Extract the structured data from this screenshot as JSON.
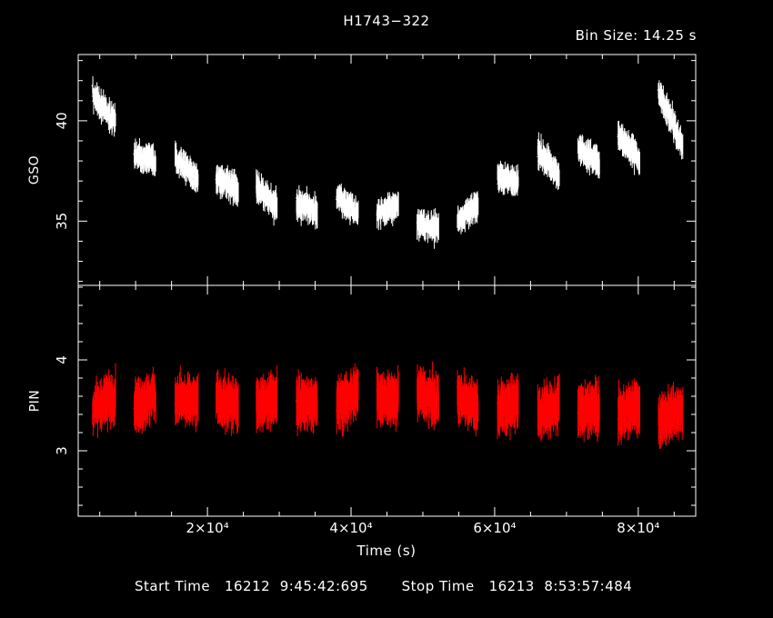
{
  "title": "H1743−322",
  "bin_size": "Bin Size: 14.25 s",
  "xlabel": "Time (s)",
  "footer": {
    "start_label": "Start Time",
    "start_value": "16212  9:45:42:695",
    "stop_label": "Stop Time",
    "stop_value": "16213  8:53:57:484"
  },
  "colors": {
    "gso": "#ffffff",
    "pin": "#ff0000",
    "background": "#000000",
    "axes": "#ffffff"
  },
  "chart_data": [
    {
      "type": "line",
      "panel": "top",
      "ylabel": "GSO",
      "xlim": [
        2000,
        88000
      ],
      "ylim": [
        31.8,
        43.3
      ],
      "xticks_major": [
        20000,
        40000,
        60000,
        80000
      ],
      "yticks_major": [
        35,
        40
      ],
      "yticklabels": [
        "35",
        "40"
      ],
      "series": [
        {
          "color": "#ffffff",
          "segments": [
            {
              "x0": 4000,
              "x1": 7200,
              "y0": 41.3,
              "y1": 39.9
            },
            {
              "x0": 9800,
              "x1": 12800,
              "y0": 38.3,
              "y1": 38.0
            },
            {
              "x0": 15500,
              "x1": 18700,
              "y0": 38.2,
              "y1": 37.0
            },
            {
              "x0": 21200,
              "x1": 24300,
              "y0": 37.2,
              "y1": 36.5
            },
            {
              "x0": 26800,
              "x1": 29700,
              "y0": 36.7,
              "y1": 35.7
            },
            {
              "x0": 32400,
              "x1": 35300,
              "y0": 35.9,
              "y1": 35.5
            },
            {
              "x0": 38000,
              "x1": 41000,
              "y0": 36.2,
              "y1": 35.4
            },
            {
              "x0": 43600,
              "x1": 46600,
              "y0": 35.4,
              "y1": 35.8
            },
            {
              "x0": 49200,
              "x1": 52200,
              "y0": 34.8,
              "y1": 34.7
            },
            {
              "x0": 54800,
              "x1": 57700,
              "y0": 35.0,
              "y1": 35.8
            },
            {
              "x0": 60400,
              "x1": 63300,
              "y0": 37.2,
              "y1": 37.0
            },
            {
              "x0": 66000,
              "x1": 69000,
              "y0": 38.5,
              "y1": 37.3
            },
            {
              "x0": 71600,
              "x1": 74600,
              "y0": 38.6,
              "y1": 37.9
            },
            {
              "x0": 77200,
              "x1": 80200,
              "y0": 39.3,
              "y1": 38.1
            },
            {
              "x0": 82800,
              "x1": 86200,
              "y0": 41.5,
              "y1": 38.7
            }
          ]
        }
      ]
    },
    {
      "type": "line",
      "panel": "bottom",
      "ylabel": "PIN",
      "xlabel": "Time (s)",
      "xlim": [
        2000,
        88000
      ],
      "ylim": [
        2.28,
        4.82
      ],
      "xticks_major": [
        20000,
        40000,
        60000,
        80000
      ],
      "xticklabels": [
        "2×10⁴",
        "4×10⁴",
        "6×10⁴",
        "8×10⁴"
      ],
      "yticks_major": [
        3,
        4
      ],
      "yticklabels": [
        "3",
        "4"
      ],
      "series": [
        {
          "color": "#ff0000",
          "segments": [
            {
              "x0": 4000,
              "x1": 7200,
              "y0": 3.45,
              "y1": 3.6
            },
            {
              "x0": 9800,
              "x1": 12800,
              "y0": 3.5,
              "y1": 3.6
            },
            {
              "x0": 15500,
              "x1": 18700,
              "y0": 3.55,
              "y1": 3.55
            },
            {
              "x0": 21200,
              "x1": 24300,
              "y0": 3.55,
              "y1": 3.5
            },
            {
              "x0": 26800,
              "x1": 29700,
              "y0": 3.5,
              "y1": 3.6
            },
            {
              "x0": 32400,
              "x1": 35300,
              "y0": 3.55,
              "y1": 3.5
            },
            {
              "x0": 38000,
              "x1": 41000,
              "y0": 3.5,
              "y1": 3.65
            },
            {
              "x0": 43600,
              "x1": 46600,
              "y0": 3.6,
              "y1": 3.55
            },
            {
              "x0": 49200,
              "x1": 52200,
              "y0": 3.65,
              "y1": 3.55
            },
            {
              "x0": 54800,
              "x1": 57700,
              "y0": 3.6,
              "y1": 3.5
            },
            {
              "x0": 60400,
              "x1": 63300,
              "y0": 3.45,
              "y1": 3.55
            },
            {
              "x0": 66000,
              "x1": 69000,
              "y0": 3.4,
              "y1": 3.5
            },
            {
              "x0": 71600,
              "x1": 74600,
              "y0": 3.45,
              "y1": 3.45
            },
            {
              "x0": 77200,
              "x1": 80200,
              "y0": 3.4,
              "y1": 3.5
            },
            {
              "x0": 82800,
              "x1": 86200,
              "y0": 3.35,
              "y1": 3.45
            }
          ]
        }
      ]
    }
  ]
}
